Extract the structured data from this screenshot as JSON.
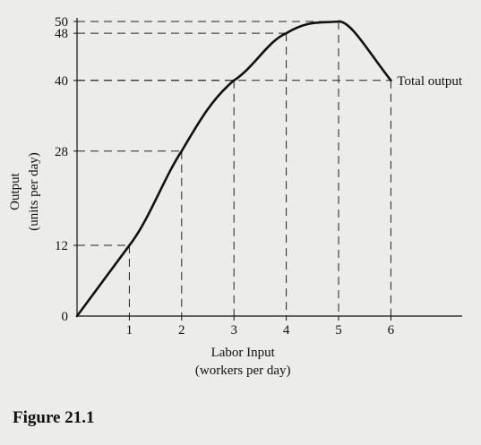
{
  "chart_data": {
    "type": "line",
    "x": [
      0,
      1,
      2,
      3,
      4,
      5,
      6
    ],
    "series": [
      {
        "name": "Total output",
        "values": [
          0,
          12,
          28,
          40,
          48,
          50,
          40
        ]
      }
    ],
    "xticks": [
      "1",
      "2",
      "3",
      "4",
      "5",
      "6"
    ],
    "yticks": [
      0,
      12,
      28,
      40,
      48,
      50
    ],
    "xlabel": [
      "Labor Input",
      "(workers per day)"
    ],
    "ylabel": [
      "Output",
      "(units per day)"
    ],
    "xlim": [
      0,
      7.2
    ],
    "ylim": [
      0,
      50
    ],
    "reference_lines": "dashed guides from each point to both axes",
    "curve_label": "Total output",
    "colors": {
      "background": "#ececea",
      "line": "#111111"
    }
  },
  "caption": "Figure 21.1"
}
